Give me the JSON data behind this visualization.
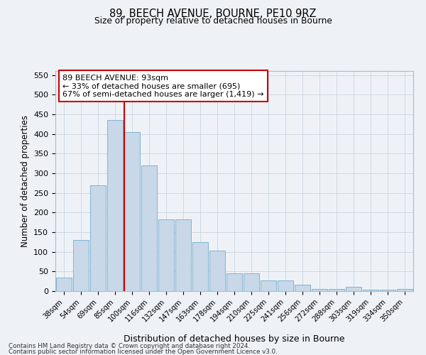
{
  "title1": "89, BEECH AVENUE, BOURNE, PE10 9RZ",
  "title2": "Size of property relative to detached houses in Bourne",
  "xlabel": "Distribution of detached houses by size in Bourne",
  "ylabel": "Number of detached properties",
  "categories": [
    "38sqm",
    "54sqm",
    "69sqm",
    "85sqm",
    "100sqm",
    "116sqm",
    "132sqm",
    "147sqm",
    "163sqm",
    "178sqm",
    "194sqm",
    "210sqm",
    "225sqm",
    "241sqm",
    "256sqm",
    "272sqm",
    "288sqm",
    "303sqm",
    "319sqm",
    "334sqm",
    "350sqm"
  ],
  "values": [
    35,
    130,
    270,
    435,
    405,
    320,
    183,
    183,
    125,
    103,
    45,
    45,
    28,
    28,
    17,
    6,
    5,
    10,
    3,
    3,
    6
  ],
  "bar_color": "#c8d8e8",
  "bar_edge_color": "#7fb3d0",
  "vline_color": "#cc0000",
  "ylim": [
    0,
    560
  ],
  "yticks": [
    0,
    50,
    100,
    150,
    200,
    250,
    300,
    350,
    400,
    450,
    500,
    550
  ],
  "annotation_title": "89 BEECH AVENUE: 93sqm",
  "annotation_line1": "← 33% of detached houses are smaller (695)",
  "annotation_line2": "67% of semi-detached houses are larger (1,419) →",
  "footer1": "Contains HM Land Registry data © Crown copyright and database right 2024.",
  "footer2": "Contains public sector information licensed under the Open Government Licence v3.0.",
  "bg_color": "#eef2f7",
  "grid_color": "#c8d4e0"
}
